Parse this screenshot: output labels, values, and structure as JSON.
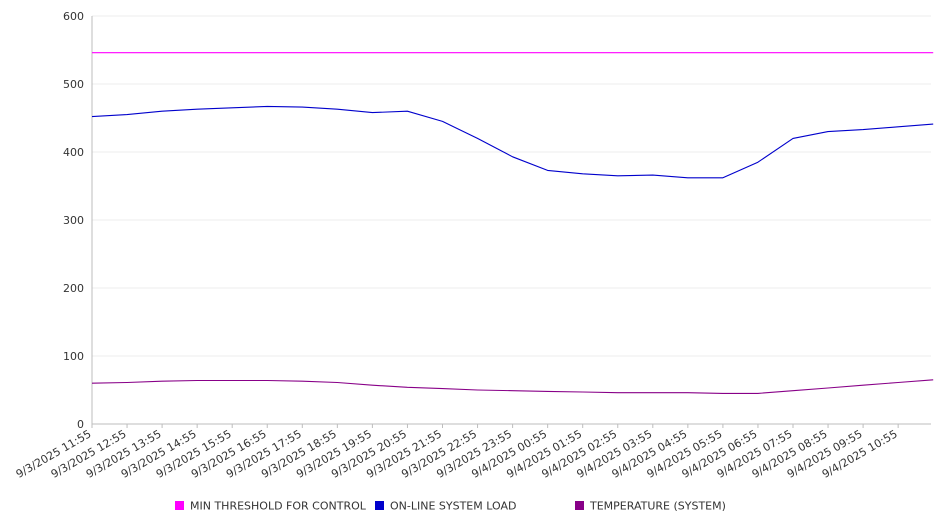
{
  "chart_data": {
    "type": "line",
    "x_ticks": [
      "9/3/2025 11:55",
      "9/3/2025 12:55",
      "9/3/2025 13:55",
      "9/3/2025 14:55",
      "9/3/2025 15:55",
      "9/3/2025 16:55",
      "9/3/2025 17:55",
      "9/3/2025 18:55",
      "9/3/2025 19:55",
      "9/3/2025 20:55",
      "9/3/2025 21:55",
      "9/3/2025 22:55",
      "9/3/2025 23:55",
      "9/4/2025 00:55",
      "9/4/2025 01:55",
      "9/4/2025 02:55",
      "9/4/2025 03:55",
      "9/4/2025 04:55",
      "9/4/2025 05:55",
      "9/4/2025 06:55",
      "9/4/2025 07:55",
      "9/4/2025 08:55",
      "9/4/2025 09:55",
      "9/4/2025 10:55"
    ],
    "y_ticks": [
      "0",
      "100",
      "200",
      "300",
      "400",
      "500",
      "600"
    ],
    "ylim": [
      0,
      600
    ],
    "grid": true,
    "legend_position": "bottom",
    "series": [
      {
        "name": "MIN THRESHOLD FOR CONTROL",
        "color": "#ff00ff",
        "x": [
          "9/3/2025 11:55",
          "9/4/2025 11:55"
        ],
        "values": [
          546,
          546
        ]
      },
      {
        "name": "ON-LINE SYSTEM LOAD",
        "color": "#0000cc",
        "x": [
          "9/3/2025 11:55",
          "9/3/2025 12:55",
          "9/3/2025 13:55",
          "9/3/2025 14:55",
          "9/3/2025 15:55",
          "9/3/2025 16:55",
          "9/3/2025 17:55",
          "9/3/2025 18:55",
          "9/3/2025 19:55",
          "9/3/2025 20:55",
          "9/3/2025 21:55",
          "9/3/2025 22:55",
          "9/3/2025 23:55",
          "9/4/2025 00:55",
          "9/4/2025 01:55",
          "9/4/2025 02:55",
          "9/4/2025 03:55",
          "9/4/2025 04:55",
          "9/4/2025 05:55",
          "9/4/2025 06:55",
          "9/4/2025 07:55",
          "9/4/2025 08:55",
          "9/4/2025 09:55",
          "9/4/2025 10:55",
          "9/4/2025 11:55"
        ],
        "values": [
          452,
          455,
          460,
          463,
          465,
          467,
          466,
          463,
          458,
          460,
          445,
          420,
          393,
          373,
          368,
          365,
          366,
          362,
          362,
          385,
          420,
          430,
          433,
          437,
          441
        ]
      },
      {
        "name": "TEMPERATURE (SYSTEM)",
        "color": "#880088",
        "x": [
          "9/3/2025 11:55",
          "9/3/2025 12:55",
          "9/3/2025 13:55",
          "9/3/2025 14:55",
          "9/3/2025 15:55",
          "9/3/2025 16:55",
          "9/3/2025 17:55",
          "9/3/2025 18:55",
          "9/3/2025 19:55",
          "9/3/2025 20:55",
          "9/3/2025 21:55",
          "9/3/2025 22:55",
          "9/3/2025 23:55",
          "9/4/2025 00:55",
          "9/4/2025 01:55",
          "9/4/2025 02:55",
          "9/4/2025 03:55",
          "9/4/2025 04:55",
          "9/4/2025 05:55",
          "9/4/2025 06:55",
          "9/4/2025 07:55",
          "9/4/2025 08:55",
          "9/4/2025 09:55",
          "9/4/2025 10:55",
          "9/4/2025 11:55"
        ],
        "values": [
          60,
          61,
          63,
          64,
          64,
          64,
          63,
          61,
          57,
          54,
          52,
          50,
          49,
          48,
          47,
          46,
          46,
          46,
          45,
          45,
          49,
          53,
          57,
          61,
          65
        ]
      }
    ]
  }
}
